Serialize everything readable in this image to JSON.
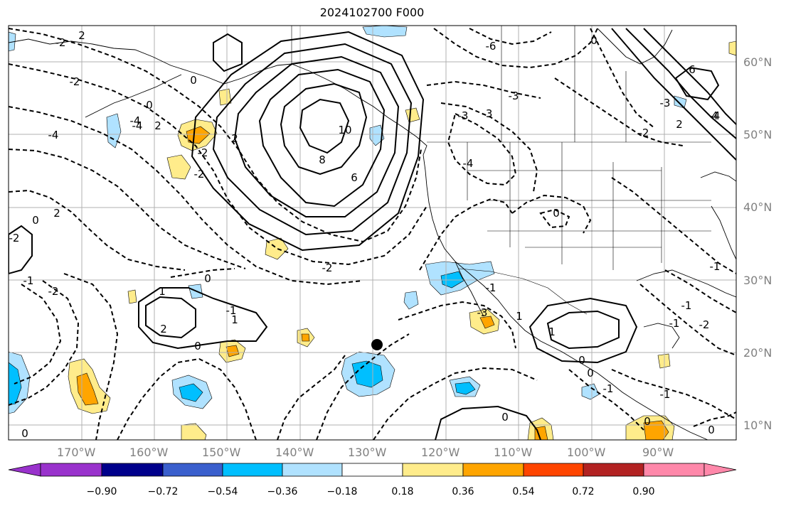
{
  "title": "2024102700 F000",
  "lat_labels": [
    "60°N",
    "50°N",
    "40°N",
    "30°N",
    "20°N",
    "10°N"
  ],
  "lon_labels": [
    "170°W",
    "160°W",
    "150°W",
    "140°W",
    "130°W",
    "120°W",
    "110°W",
    "100°W",
    "90°W"
  ],
  "colorbar": {
    "ticks": [
      "−0.90",
      "−0.72",
      "−0.54",
      "−0.36",
      "−0.18",
      "0.18",
      "0.36",
      "0.54",
      "0.72",
      "0.90"
    ],
    "colors": [
      "#9932cc",
      "#00008b",
      "#3a5fcd",
      "#00bfff",
      "#b0e2ff",
      "#ffffff",
      "#ffec8b",
      "#ffa500",
      "#ff4500",
      "#b22222",
      "#ff88aa"
    ]
  },
  "contour_labels": [
    "2",
    "-2",
    "-2",
    "-4",
    "0",
    "2",
    "-4",
    "0",
    "-1",
    "-2",
    "-2",
    "2",
    "0",
    "1",
    "0",
    "-1",
    "0",
    "1",
    "2",
    "-4",
    "0",
    "10",
    "8",
    "6",
    "2",
    "-2",
    "-2",
    "-6",
    "-3",
    "-3",
    "-3",
    "-1",
    "6",
    "4",
    "2",
    "0",
    "-2",
    "-4",
    "0",
    "1",
    "-1",
    "0",
    "-3",
    "-1",
    "-2",
    "-4",
    "0",
    "1",
    "0",
    "-1",
    "-1",
    "0",
    "0",
    "-1",
    "-2",
    "-3"
  ],
  "colors": {
    "coast": "#000000",
    "grid": "#b0b0b0",
    "contour": "#000000",
    "marker": "#000000"
  }
}
